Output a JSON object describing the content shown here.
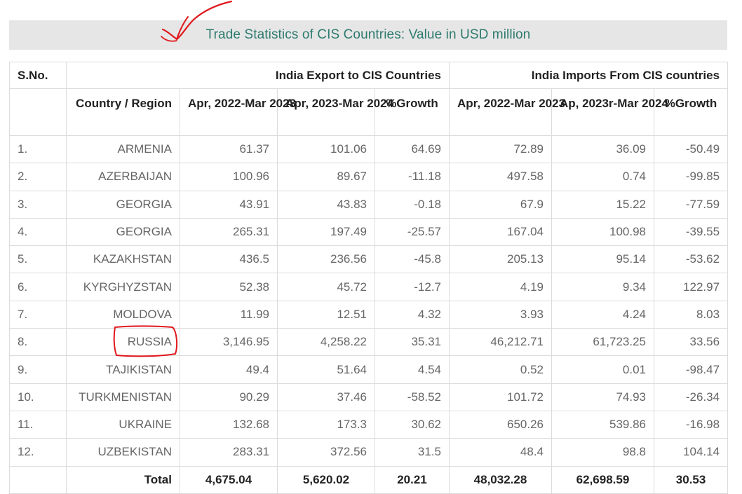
{
  "title": "Trade Statistics of CIS Countries: Value in USD million",
  "annotation_color": "#e0181d",
  "title_color": "#2d7a6e",
  "header": {
    "sno": "S.No.",
    "export_group": "India Export to CIS Countries",
    "import_group": "India Imports From CIS countries",
    "country": "Country / Region",
    "export_prev": "Apr, 2022-Mar 2023",
    "export_curr": "Apr, 2023-Mar 2024",
    "export_growth": "%Growth",
    "import_prev": "Apr, 2022-Mar 2023",
    "import_curr": "Ap, 2023r-Mar 2024",
    "import_growth": "%Growth"
  },
  "rows": [
    {
      "sno": "1.",
      "country": "ARMENIA",
      "exp_prev": "61.37",
      "exp_curr": "101.06",
      "exp_growth": "64.69",
      "imp_prev": "72.89",
      "imp_curr": "36.09",
      "imp_growth": "-50.49"
    },
    {
      "sno": "2.",
      "country": "AZERBAIJAN",
      "exp_prev": "100.96",
      "exp_curr": "89.67",
      "exp_growth": "-11.18",
      "imp_prev": "497.58",
      "imp_curr": "0.74",
      "imp_growth": "-99.85"
    },
    {
      "sno": "3.",
      "country": "GEORGIA",
      "exp_prev": "43.91",
      "exp_curr": "43.83",
      "exp_growth": "-0.18",
      "imp_prev": "67.9",
      "imp_curr": "15.22",
      "imp_growth": "-77.59"
    },
    {
      "sno": "4.",
      "country": "GEORGIA",
      "exp_prev": "265.31",
      "exp_curr": "197.49",
      "exp_growth": "-25.57",
      "imp_prev": "167.04",
      "imp_curr": "100.98",
      "imp_growth": "-39.55"
    },
    {
      "sno": "5.",
      "country": "KAZAKHSTAN",
      "exp_prev": "436.5",
      "exp_curr": "236.56",
      "exp_growth": "-45.8",
      "imp_prev": "205.13",
      "imp_curr": "95.14",
      "imp_growth": "-53.62"
    },
    {
      "sno": "6.",
      "country": "KYRGHYZSTAN",
      "exp_prev": "52.38",
      "exp_curr": "45.72",
      "exp_growth": "-12.7",
      "imp_prev": "4.19",
      "imp_curr": "9.34",
      "imp_growth": "122.97"
    },
    {
      "sno": "7.",
      "country": "MOLDOVA",
      "exp_prev": "11.99",
      "exp_curr": "12.51",
      "exp_growth": "4.32",
      "imp_prev": "3.93",
      "imp_curr": "4.24",
      "imp_growth": "8.03"
    },
    {
      "sno": "8.",
      "country": "RUSSIA",
      "exp_prev": "3,146.95",
      "exp_curr": "4,258.22",
      "exp_growth": "35.31",
      "imp_prev": "46,212.71",
      "imp_curr": "61,723.25",
      "imp_growth": "33.56"
    },
    {
      "sno": "9.",
      "country": "TAJIKISTAN",
      "exp_prev": "49.4",
      "exp_curr": "51.64",
      "exp_growth": "4.54",
      "imp_prev": "0.52",
      "imp_curr": "0.01",
      "imp_growth": "-98.47"
    },
    {
      "sno": "10.",
      "country": "TURKMENISTAN",
      "exp_prev": "90.29",
      "exp_curr": "37.46",
      "exp_growth": "-58.52",
      "imp_prev": "101.72",
      "imp_curr": "74.93",
      "imp_growth": "-26.34"
    },
    {
      "sno": "11.",
      "country": "UKRAINE",
      "exp_prev": "132.68",
      "exp_curr": "173.3",
      "exp_growth": "30.62",
      "imp_prev": "650.26",
      "imp_curr": "539.86",
      "imp_growth": "-16.98"
    },
    {
      "sno": "12.",
      "country": "UZBEKISTAN",
      "exp_prev": "283.31",
      "exp_curr": "372.56",
      "exp_growth": "31.5",
      "imp_prev": "48.4",
      "imp_curr": "98.8",
      "imp_growth": "104.14"
    }
  ],
  "total": {
    "label": "Total",
    "exp_prev": "4,675.04",
    "exp_curr": "5,620.02",
    "exp_growth": "20.21",
    "imp_prev": "48,032.28",
    "imp_curr": "62,698.59",
    "imp_growth": "30.53"
  }
}
